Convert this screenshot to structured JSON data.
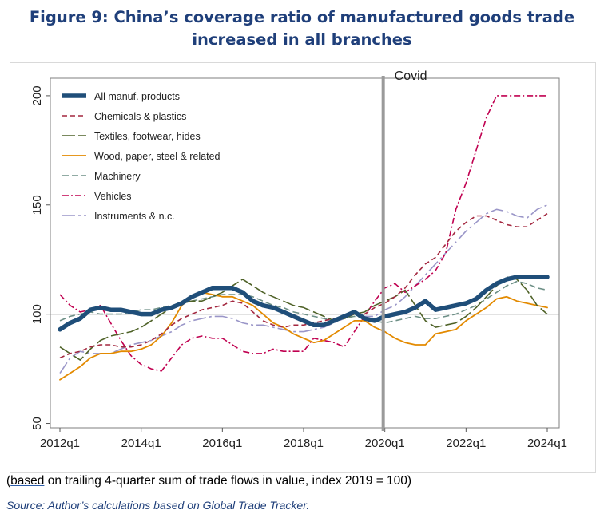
{
  "title": {
    "line1": "Figure 9: China’s coverage ratio of manufactured goods trade",
    "line2": "increased in all branches"
  },
  "note": {
    "open": "(",
    "underlined": "based",
    "rest": " on trailing 4-quarter sum of trade flows in value, index 2019 = 100)"
  },
  "source": "Source: Author’s calculations based on Global Trade Tracker.",
  "chart_data": {
    "type": "line",
    "ylim": [
      48,
      208
    ],
    "yticks": [
      50,
      100,
      150,
      200
    ],
    "reference_line": 100,
    "x_start": "2012q1",
    "xticks": [
      {
        "index": 0,
        "label": "2012q1"
      },
      {
        "index": 8,
        "label": "2014q1"
      },
      {
        "index": 16,
        "label": "2016q1"
      },
      {
        "index": 24,
        "label": "2018q1"
      },
      {
        "index": 32,
        "label": "2020q1"
      },
      {
        "index": 40,
        "label": "2022q1"
      },
      {
        "index": 48,
        "label": "2024q1"
      }
    ],
    "annotation": {
      "label": "Covid",
      "index": 32
    },
    "legend_position": "top-left",
    "series": [
      {
        "name": "All manuf. products",
        "color": "#1f4e79",
        "dash": "",
        "width": 5.5,
        "values": [
          93,
          96,
          98,
          102,
          103,
          102,
          102,
          101,
          100,
          100,
          102,
          103,
          105,
          108,
          110,
          112,
          112,
          112,
          110,
          106,
          104,
          103,
          101,
          99,
          97,
          95,
          95,
          97,
          99,
          101,
          98,
          97,
          99,
          100,
          101,
          103,
          106,
          102,
          103,
          104,
          105,
          107,
          111,
          114,
          116,
          117,
          117,
          117,
          117
        ]
      },
      {
        "name": "Chemicals & plastics",
        "color": "#a3273f",
        "dash": "6,4",
        "width": 1.6,
        "values": [
          80,
          82,
          83,
          85,
          86,
          86,
          85,
          85,
          86,
          88,
          91,
          95,
          98,
          100,
          102,
          103,
          104,
          106,
          105,
          101,
          97,
          95,
          94,
          95,
          95,
          96,
          97,
          98,
          99,
          100,
          100,
          103,
          105,
          108,
          112,
          118,
          123,
          126,
          132,
          138,
          142,
          145,
          145,
          143,
          141,
          140,
          140,
          143,
          146
        ]
      },
      {
        "name": "Textiles, footwear, hides",
        "color": "#4f6228",
        "dash": "16,4",
        "width": 1.6,
        "values": [
          85,
          82,
          79,
          84,
          88,
          90,
          91,
          92,
          94,
          97,
          100,
          103,
          105,
          106,
          106,
          108,
          110,
          113,
          116,
          113,
          110,
          108,
          106,
          104,
          103,
          101,
          99,
          97,
          98,
          100,
          101,
          104,
          106,
          108,
          111,
          104,
          97,
          94,
          95,
          96,
          99,
          103,
          108,
          113,
          117,
          116,
          111,
          104,
          100
        ]
      },
      {
        "name": "Wood, paper, steel & related",
        "color": "#e38a00",
        "dash": "",
        "width": 1.8,
        "values": [
          70,
          73,
          76,
          80,
          82,
          82,
          83,
          83,
          84,
          86,
          90,
          96,
          104,
          108,
          110,
          109,
          108,
          108,
          106,
          104,
          100,
          96,
          94,
          91,
          89,
          87,
          88,
          91,
          94,
          97,
          97,
          94,
          92,
          89,
          87,
          86,
          86,
          91,
          92,
          93,
          97,
          100,
          103,
          107,
          108,
          106,
          105,
          104,
          103
        ]
      },
      {
        "name": "Machinery",
        "color": "#6d8f86",
        "dash": "8,4",
        "width": 1.6,
        "values": [
          97,
          99,
          100,
          101,
          100,
          100,
          100,
          101,
          102,
          102,
          103,
          104,
          105,
          106,
          107,
          108,
          109,
          109,
          109,
          108,
          106,
          104,
          103,
          101,
          100,
          99,
          98,
          97,
          98,
          99,
          98,
          97,
          96,
          97,
          98,
          99,
          98,
          98,
          99,
          100,
          102,
          104,
          107,
          110,
          113,
          115,
          114,
          112,
          111
        ]
      },
      {
        "name": "Vehicles",
        "color": "#c00050",
        "dash": "8,3,2,3",
        "width": 1.6,
        "values": [
          109,
          104,
          101,
          102,
          104,
          96,
          88,
          81,
          77,
          75,
          74,
          80,
          86,
          89,
          90,
          89,
          89,
          86,
          83,
          82,
          82,
          84,
          83,
          83,
          83,
          89,
          88,
          87,
          85,
          92,
          99,
          106,
          112,
          114,
          110,
          113,
          116,
          120,
          128,
          148,
          160,
          175,
          190,
          200,
          200,
          200,
          200,
          200,
          200
        ]
      },
      {
        "name": "Instruments & n.c.",
        "color": "#9a96c8",
        "dash": "16,4,3,4",
        "width": 1.6,
        "values": [
          73,
          80,
          83,
          82,
          82,
          82,
          84,
          86,
          87,
          88,
          90,
          92,
          95,
          97,
          98,
          99,
          99,
          98,
          96,
          95,
          95,
          94,
          93,
          92,
          92,
          93,
          94,
          96,
          98,
          100,
          99,
          99,
          102,
          104,
          108,
          113,
          118,
          123,
          128,
          133,
          138,
          142,
          146,
          148,
          147,
          145,
          144,
          148,
          150
        ]
      }
    ]
  }
}
